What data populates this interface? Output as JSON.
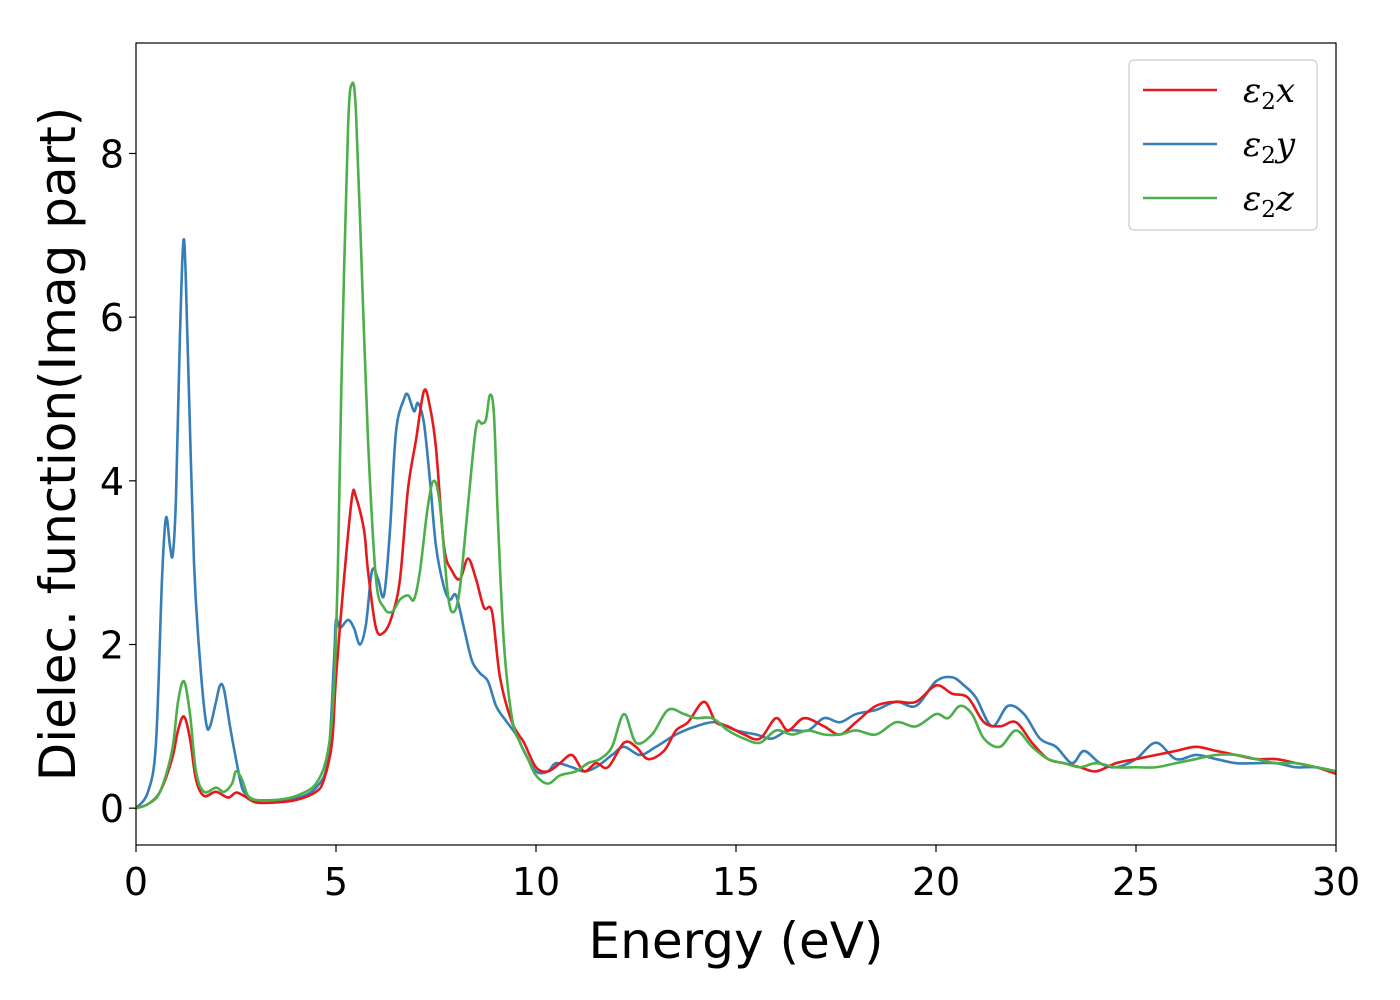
{
  "chart_data": {
    "type": "line",
    "xlabel": "Energy (eV)",
    "ylabel": "Dielec. function(Imag part)",
    "xlim": [
      0,
      30
    ],
    "ylim": [
      -0.45,
      9.35
    ],
    "xticks": [
      0,
      5,
      10,
      15,
      20,
      25,
      30
    ],
    "yticks": [
      0,
      2,
      4,
      6,
      8
    ],
    "grid": false,
    "legend_position": "top-right",
    "series": [
      {
        "name": "ε₂x",
        "name_base": "ε",
        "name_sub": "2",
        "name_suffix": "x",
        "color": "#e41a1c",
        "points": [
          [
            0,
            0
          ],
          [
            0.3,
            0.05
          ],
          [
            0.6,
            0.2
          ],
          [
            0.9,
            0.6
          ],
          [
            1.05,
            0.95
          ],
          [
            1.2,
            1.12
          ],
          [
            1.35,
            0.85
          ],
          [
            1.5,
            0.35
          ],
          [
            1.7,
            0.15
          ],
          [
            2.0,
            0.2
          ],
          [
            2.3,
            0.13
          ],
          [
            2.5,
            0.19
          ],
          [
            2.7,
            0.15
          ],
          [
            3.0,
            0.07
          ],
          [
            3.5,
            0.07
          ],
          [
            4.0,
            0.1
          ],
          [
            4.5,
            0.2
          ],
          [
            4.7,
            0.35
          ],
          [
            4.9,
            0.8
          ],
          [
            5.0,
            1.6
          ],
          [
            5.2,
            2.8
          ],
          [
            5.4,
            3.8
          ],
          [
            5.5,
            3.8
          ],
          [
            5.7,
            3.4
          ],
          [
            5.8,
            2.9
          ],
          [
            6.0,
            2.2
          ],
          [
            6.2,
            2.15
          ],
          [
            6.4,
            2.35
          ],
          [
            6.6,
            2.8
          ],
          [
            6.8,
            3.9
          ],
          [
            7.0,
            4.5
          ],
          [
            7.2,
            5.1
          ],
          [
            7.35,
            4.9
          ],
          [
            7.5,
            4.4
          ],
          [
            7.7,
            3.2
          ],
          [
            7.9,
            2.9
          ],
          [
            8.1,
            2.8
          ],
          [
            8.3,
            3.05
          ],
          [
            8.5,
            2.8
          ],
          [
            8.7,
            2.45
          ],
          [
            8.9,
            2.4
          ],
          [
            9.1,
            1.6
          ],
          [
            9.4,
            1.05
          ],
          [
            9.7,
            0.8
          ],
          [
            10.0,
            0.5
          ],
          [
            10.3,
            0.45
          ],
          [
            10.6,
            0.55
          ],
          [
            10.9,
            0.65
          ],
          [
            11.2,
            0.45
          ],
          [
            11.5,
            0.55
          ],
          [
            11.8,
            0.5
          ],
          [
            12.2,
            0.8
          ],
          [
            12.5,
            0.75
          ],
          [
            12.8,
            0.6
          ],
          [
            13.2,
            0.7
          ],
          [
            13.5,
            0.95
          ],
          [
            13.8,
            1.05
          ],
          [
            14.2,
            1.3
          ],
          [
            14.5,
            1.05
          ],
          [
            14.8,
            1.0
          ],
          [
            15.2,
            0.9
          ],
          [
            15.6,
            0.85
          ],
          [
            16.0,
            1.1
          ],
          [
            16.3,
            0.95
          ],
          [
            16.7,
            1.1
          ],
          [
            17.2,
            1.0
          ],
          [
            17.6,
            0.9
          ],
          [
            18.0,
            1.05
          ],
          [
            18.5,
            1.25
          ],
          [
            19.0,
            1.3
          ],
          [
            19.5,
            1.3
          ],
          [
            20.0,
            1.5
          ],
          [
            20.4,
            1.4
          ],
          [
            20.8,
            1.35
          ],
          [
            21.2,
            1.05
          ],
          [
            21.6,
            1.0
          ],
          [
            22.0,
            1.05
          ],
          [
            22.4,
            0.8
          ],
          [
            22.8,
            0.6
          ],
          [
            23.2,
            0.55
          ],
          [
            23.6,
            0.5
          ],
          [
            24.0,
            0.45
          ],
          [
            24.5,
            0.55
          ],
          [
            25.0,
            0.6
          ],
          [
            25.5,
            0.65
          ],
          [
            26.0,
            0.7
          ],
          [
            26.5,
            0.75
          ],
          [
            27.0,
            0.7
          ],
          [
            27.5,
            0.65
          ],
          [
            28.0,
            0.6
          ],
          [
            28.5,
            0.6
          ],
          [
            29.0,
            0.55
          ],
          [
            29.5,
            0.5
          ],
          [
            30.0,
            0.42
          ]
        ]
      },
      {
        "name": "ε₂y",
        "name_base": "ε",
        "name_sub": "2",
        "name_suffix": "y",
        "color": "#377eb8",
        "points": [
          [
            0,
            0
          ],
          [
            0.3,
            0.2
          ],
          [
            0.5,
            0.8
          ],
          [
            0.65,
            2.8
          ],
          [
            0.75,
            3.55
          ],
          [
            0.85,
            3.2
          ],
          [
            0.92,
            3.1
          ],
          [
            1.0,
            3.8
          ],
          [
            1.1,
            5.8
          ],
          [
            1.2,
            6.95
          ],
          [
            1.3,
            5.5
          ],
          [
            1.45,
            3.0
          ],
          [
            1.6,
            1.8
          ],
          [
            1.75,
            1.05
          ],
          [
            1.85,
            1.0
          ],
          [
            2.0,
            1.3
          ],
          [
            2.1,
            1.5
          ],
          [
            2.2,
            1.45
          ],
          [
            2.35,
            1.0
          ],
          [
            2.5,
            0.6
          ],
          [
            2.65,
            0.25
          ],
          [
            2.8,
            0.15
          ],
          [
            3.0,
            0.1
          ],
          [
            3.5,
            0.1
          ],
          [
            4.0,
            0.12
          ],
          [
            4.5,
            0.25
          ],
          [
            4.8,
            0.6
          ],
          [
            4.95,
            1.8
          ],
          [
            5.0,
            2.3
          ],
          [
            5.1,
            2.2
          ],
          [
            5.3,
            2.3
          ],
          [
            5.45,
            2.2
          ],
          [
            5.6,
            2.0
          ],
          [
            5.75,
            2.25
          ],
          [
            5.9,
            2.9
          ],
          [
            6.05,
            2.8
          ],
          [
            6.2,
            2.6
          ],
          [
            6.35,
            3.4
          ],
          [
            6.5,
            4.6
          ],
          [
            6.7,
            5.0
          ],
          [
            6.8,
            5.05
          ],
          [
            6.95,
            4.85
          ],
          [
            7.05,
            4.95
          ],
          [
            7.2,
            4.7
          ],
          [
            7.35,
            4.0
          ],
          [
            7.5,
            3.2
          ],
          [
            7.7,
            2.7
          ],
          [
            7.85,
            2.55
          ],
          [
            8.0,
            2.6
          ],
          [
            8.2,
            2.2
          ],
          [
            8.4,
            1.8
          ],
          [
            8.6,
            1.65
          ],
          [
            8.8,
            1.55
          ],
          [
            9.0,
            1.25
          ],
          [
            9.2,
            1.1
          ],
          [
            9.5,
            0.9
          ],
          [
            9.7,
            0.7
          ],
          [
            10.0,
            0.45
          ],
          [
            10.3,
            0.45
          ],
          [
            10.5,
            0.55
          ],
          [
            10.9,
            0.5
          ],
          [
            11.2,
            0.45
          ],
          [
            11.5,
            0.5
          ],
          [
            11.9,
            0.65
          ],
          [
            12.2,
            0.75
          ],
          [
            12.6,
            0.65
          ],
          [
            13.0,
            0.75
          ],
          [
            13.5,
            0.9
          ],
          [
            14.0,
            1.0
          ],
          [
            14.5,
            1.05
          ],
          [
            15.0,
            0.95
          ],
          [
            15.5,
            0.9
          ],
          [
            15.9,
            0.85
          ],
          [
            16.3,
            0.95
          ],
          [
            16.8,
            0.95
          ],
          [
            17.2,
            1.1
          ],
          [
            17.6,
            1.05
          ],
          [
            18.0,
            1.15
          ],
          [
            18.5,
            1.2
          ],
          [
            19.0,
            1.3
          ],
          [
            19.5,
            1.25
          ],
          [
            20.0,
            1.55
          ],
          [
            20.4,
            1.6
          ],
          [
            20.7,
            1.5
          ],
          [
            21.0,
            1.35
          ],
          [
            21.4,
            1.0
          ],
          [
            21.8,
            1.25
          ],
          [
            22.2,
            1.15
          ],
          [
            22.6,
            0.85
          ],
          [
            23.0,
            0.75
          ],
          [
            23.4,
            0.55
          ],
          [
            23.7,
            0.7
          ],
          [
            24.1,
            0.55
          ],
          [
            24.5,
            0.5
          ],
          [
            25.0,
            0.6
          ],
          [
            25.5,
            0.8
          ],
          [
            26.0,
            0.6
          ],
          [
            26.5,
            0.65
          ],
          [
            27.0,
            0.6
          ],
          [
            27.5,
            0.55
          ],
          [
            28.0,
            0.55
          ],
          [
            28.5,
            0.55
          ],
          [
            29.0,
            0.5
          ],
          [
            29.5,
            0.5
          ],
          [
            30.0,
            0.45
          ]
        ]
      },
      {
        "name": "ε₂z",
        "name_base": "ε",
        "name_sub": "2",
        "name_suffix": "z",
        "color": "#4daf4a",
        "points": [
          [
            0,
            0
          ],
          [
            0.3,
            0.05
          ],
          [
            0.6,
            0.2
          ],
          [
            0.9,
            0.7
          ],
          [
            1.05,
            1.3
          ],
          [
            1.2,
            1.55
          ],
          [
            1.35,
            1.15
          ],
          [
            1.5,
            0.45
          ],
          [
            1.7,
            0.2
          ],
          [
            2.0,
            0.25
          ],
          [
            2.2,
            0.2
          ],
          [
            2.4,
            0.3
          ],
          [
            2.5,
            0.45
          ],
          [
            2.65,
            0.35
          ],
          [
            2.8,
            0.15
          ],
          [
            3.0,
            0.1
          ],
          [
            3.5,
            0.1
          ],
          [
            4.0,
            0.15
          ],
          [
            4.5,
            0.3
          ],
          [
            4.8,
            0.7
          ],
          [
            4.95,
            1.5
          ],
          [
            5.05,
            3.0
          ],
          [
            5.15,
            5.5
          ],
          [
            5.3,
            8.3
          ],
          [
            5.4,
            8.85
          ],
          [
            5.5,
            8.5
          ],
          [
            5.65,
            6.5
          ],
          [
            5.8,
            4.5
          ],
          [
            6.0,
            2.8
          ],
          [
            6.2,
            2.45
          ],
          [
            6.4,
            2.4
          ],
          [
            6.6,
            2.55
          ],
          [
            6.8,
            2.6
          ],
          [
            6.95,
            2.55
          ],
          [
            7.1,
            2.9
          ],
          [
            7.3,
            3.7
          ],
          [
            7.45,
            4.0
          ],
          [
            7.6,
            3.7
          ],
          [
            7.8,
            2.6
          ],
          [
            7.95,
            2.4
          ],
          [
            8.1,
            2.7
          ],
          [
            8.3,
            3.7
          ],
          [
            8.5,
            4.65
          ],
          [
            8.65,
            4.7
          ],
          [
            8.75,
            4.75
          ],
          [
            8.85,
            5.05
          ],
          [
            8.95,
            4.8
          ],
          [
            9.05,
            3.5
          ],
          [
            9.2,
            2.0
          ],
          [
            9.4,
            1.1
          ],
          [
            9.6,
            0.8
          ],
          [
            9.8,
            0.6
          ],
          [
            10.0,
            0.4
          ],
          [
            10.3,
            0.3
          ],
          [
            10.6,
            0.4
          ],
          [
            11.0,
            0.45
          ],
          [
            11.3,
            0.55
          ],
          [
            11.6,
            0.6
          ],
          [
            11.9,
            0.75
          ],
          [
            12.2,
            1.15
          ],
          [
            12.5,
            0.8
          ],
          [
            12.9,
            0.9
          ],
          [
            13.3,
            1.2
          ],
          [
            13.7,
            1.15
          ],
          [
            14.0,
            1.1
          ],
          [
            14.4,
            1.1
          ],
          [
            14.8,
            0.95
          ],
          [
            15.2,
            0.85
          ],
          [
            15.6,
            0.8
          ],
          [
            16.0,
            0.95
          ],
          [
            16.4,
            0.9
          ],
          [
            16.8,
            0.95
          ],
          [
            17.2,
            0.9
          ],
          [
            17.6,
            0.9
          ],
          [
            18.0,
            0.95
          ],
          [
            18.5,
            0.9
          ],
          [
            19.0,
            1.05
          ],
          [
            19.5,
            1.0
          ],
          [
            20.0,
            1.15
          ],
          [
            20.3,
            1.1
          ],
          [
            20.6,
            1.25
          ],
          [
            20.9,
            1.15
          ],
          [
            21.2,
            0.85
          ],
          [
            21.6,
            0.75
          ],
          [
            22.0,
            0.95
          ],
          [
            22.4,
            0.75
          ],
          [
            22.8,
            0.6
          ],
          [
            23.2,
            0.55
          ],
          [
            23.6,
            0.5
          ],
          [
            24.0,
            0.55
          ],
          [
            24.5,
            0.5
          ],
          [
            25.0,
            0.5
          ],
          [
            25.5,
            0.5
          ],
          [
            26.0,
            0.55
          ],
          [
            26.5,
            0.6
          ],
          [
            27.0,
            0.65
          ],
          [
            27.5,
            0.65
          ],
          [
            28.0,
            0.6
          ],
          [
            28.5,
            0.55
          ],
          [
            29.0,
            0.55
          ],
          [
            29.5,
            0.5
          ],
          [
            30.0,
            0.45
          ]
        ]
      }
    ]
  }
}
